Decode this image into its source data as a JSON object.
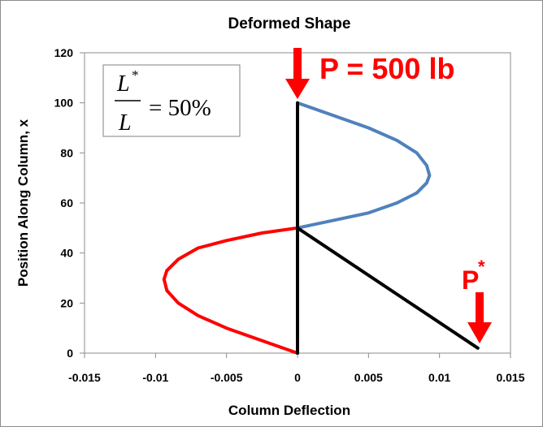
{
  "chart_data": {
    "type": "line",
    "title": "Deformed Shape",
    "xlabel": "Column Deflection",
    "ylabel": "Position Along Column, x",
    "xlim": [
      -0.015,
      0.015
    ],
    "ylim": [
      0,
      120
    ],
    "xticks": [
      "-0.015",
      "-0.01",
      "-0.005",
      "0",
      "0.005",
      "0.01",
      "0.015"
    ],
    "yticks": [
      "0",
      "20",
      "40",
      "60",
      "80",
      "100",
      "120"
    ],
    "grid": false,
    "series": [
      {
        "color": "#ff0000",
        "x": [
          0,
          -0.0025,
          -0.005,
          -0.007,
          -0.0084,
          -0.0092,
          -0.0094,
          -0.0092,
          -0.0084,
          -0.007,
          -0.005,
          -0.0025,
          0
        ],
        "y": [
          0,
          5,
          10,
          15,
          20,
          25,
          29.5,
          33,
          37.5,
          42,
          45,
          48,
          50
        ]
      },
      {
        "color": "#4f81bd",
        "x": [
          0,
          0.0025,
          0.005,
          0.007,
          0.0084,
          0.0091,
          0.0093,
          0.0091,
          0.0084,
          0.007,
          0.005,
          0.0025,
          0
        ],
        "y": [
          50,
          53,
          56,
          60,
          64,
          68,
          71,
          75,
          80,
          85,
          90,
          95,
          100
        ]
      },
      {
        "color": "#000000",
        "x": [
          0,
          0
        ],
        "y": [
          0,
          100
        ]
      },
      {
        "color": "#000000",
        "x": [
          0,
          0.0127
        ],
        "y": [
          50,
          2
        ]
      }
    ]
  },
  "annotations": {
    "load_label": "P = 500 lb",
    "pstar_base": "P",
    "pstar_sup": "*",
    "ratio": {
      "num": "L",
      "den": "L",
      "sup": "*",
      "rhs": "= 50%"
    }
  }
}
